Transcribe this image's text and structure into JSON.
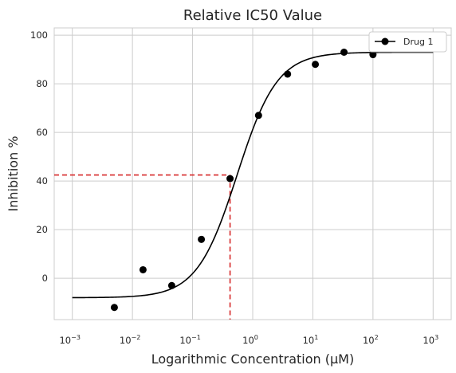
{
  "chart_data": {
    "type": "scatter",
    "title": "Relative IC50 Value",
    "xlabel": "Logarithmic Concentration (μM)",
    "ylabel": "Inhibition %",
    "x_scale": "log",
    "xlim": [
      0.0005,
      2000
    ],
    "ylim": [
      -17,
      103
    ],
    "x_ticks": [
      {
        "base": "10",
        "exp": "−3",
        "value": 0.001
      },
      {
        "base": "10",
        "exp": "−2",
        "value": 0.01
      },
      {
        "base": "10",
        "exp": "−1",
        "value": 0.1
      },
      {
        "base": "10",
        "exp": "0",
        "value": 1
      },
      {
        "base": "10",
        "exp": "1",
        "value": 10
      },
      {
        "base": "10",
        "exp": "2",
        "value": 100
      },
      {
        "base": "10",
        "exp": "3",
        "value": 1000
      }
    ],
    "y_ticks": [
      "0",
      "20",
      "40",
      "60",
      "80",
      "100"
    ],
    "grid": true,
    "legend_position": "top-right",
    "series": [
      {
        "name": "Drug 1",
        "color": "#000000",
        "points": [
          {
            "x": 0.005,
            "y": -12
          },
          {
            "x": 0.015,
            "y": 3.5
          },
          {
            "x": 0.045,
            "y": -3
          },
          {
            "x": 0.14,
            "y": 16
          },
          {
            "x": 0.42,
            "y": 41
          },
          {
            "x": 1.25,
            "y": 67
          },
          {
            "x": 3.8,
            "y": 84
          },
          {
            "x": 11,
            "y": 88
          },
          {
            "x": 33,
            "y": 93
          },
          {
            "x": 100,
            "y": 92
          }
        ]
      }
    ],
    "fit_curve": {
      "bottom": -8,
      "top": 93,
      "ic50": 0.55,
      "hill": 1.3,
      "x_range": [
        0.001,
        1000
      ],
      "color": "#000000"
    },
    "ic50_marker": {
      "x": 0.42,
      "y": 42.5,
      "color": "#d62728"
    }
  }
}
